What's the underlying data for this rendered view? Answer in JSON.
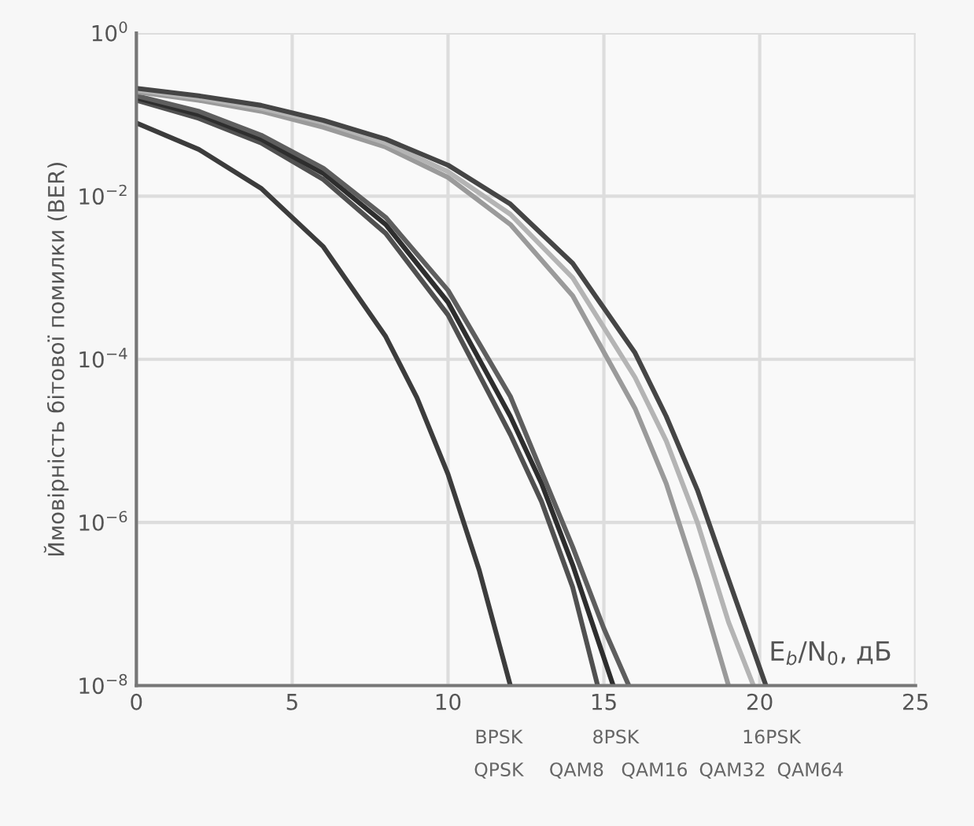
{
  "chart_data": {
    "type": "line",
    "xlabel": "E$_{b}$/N$_{0}$, дБ",
    "ylabel": "Ймовірність бітової помилки (BER)",
    "log": "y",
    "grid": true,
    "marker": "none",
    "line_style": "solid",
    "xlim": [
      0,
      25
    ],
    "xticks": [
      0,
      5,
      10,
      15,
      20,
      25
    ],
    "ylim": [
      1e-08,
      1
    ],
    "yticks": [
      {
        "value": 1,
        "label": "10$^{0}$"
      },
      {
        "value": 0.01,
        "label": "10$^{−2}$"
      },
      {
        "value": 0.0001,
        "label": "10$^{−4}$"
      },
      {
        "value": 1e-06,
        "label": "10$^{−6}$"
      },
      {
        "value": 1e-08,
        "label": "10$^{−8}$"
      }
    ],
    "series": [
      {
        "color": "#3c3c3c",
        "x": [
          0,
          2,
          4,
          6,
          8,
          9,
          10,
          11,
          12
        ],
        "values": [
          0.079,
          0.0375,
          0.0125,
          0.0024,
          0.00019,
          3.4e-05,
          3.9e-06,
          2.6e-07,
          1e-08
        ]
      },
      {
        "color": "#505050",
        "x": [
          0,
          2,
          4,
          6,
          8,
          10,
          12,
          13,
          14,
          14.8
        ],
        "values": [
          0.15,
          0.09,
          0.045,
          0.016,
          0.0035,
          0.00035,
          1.2e-05,
          1.8e-06,
          1.6e-07,
          1e-08
        ]
      },
      {
        "color": "#2e2e2e",
        "x": [
          0,
          2,
          4,
          6,
          8,
          10,
          12,
          13,
          14,
          15.3
        ],
        "values": [
          0.16,
          0.1,
          0.05,
          0.019,
          0.0045,
          0.0005,
          2e-05,
          3e-06,
          3e-07,
          1e-08
        ]
      },
      {
        "color": "#5e5e5e",
        "x": [
          0,
          2,
          4,
          6,
          8,
          10,
          12,
          14,
          15,
          15.8
        ],
        "values": [
          0.17,
          0.11,
          0.056,
          0.022,
          0.0055,
          0.0007,
          3.5e-05,
          5e-07,
          5e-08,
          1e-08
        ]
      },
      {
        "color": "#9a9a9a",
        "x": [
          0,
          2,
          4,
          6,
          8,
          10,
          12,
          14,
          16,
          17,
          18,
          19
        ],
        "values": [
          0.19,
          0.15,
          0.11,
          0.07,
          0.04,
          0.017,
          0.0045,
          0.0006,
          2.5e-05,
          3e-06,
          2e-07,
          1e-08
        ]
      },
      {
        "color": "#b4b4b4",
        "x": [
          0,
          2,
          4,
          6,
          8,
          10,
          12,
          14,
          16,
          17,
          18,
          19,
          19.8
        ],
        "values": [
          0.2,
          0.16,
          0.12,
          0.08,
          0.045,
          0.02,
          0.006,
          0.001,
          6e-05,
          1e-05,
          1e-06,
          6e-08,
          1e-08
        ]
      },
      {
        "color": "#454545",
        "x": [
          0,
          2,
          4,
          6,
          8,
          10,
          12,
          14,
          16,
          17,
          18,
          19,
          20.2
        ],
        "values": [
          0.21,
          0.17,
          0.13,
          0.085,
          0.05,
          0.024,
          0.008,
          0.0015,
          0.00012,
          2e-05,
          2.5e-06,
          2e-07,
          1e-08
        ]
      }
    ],
    "annotations": [
      "BPSK",
      "QPSK",
      "8PSK",
      "QAM8",
      "QAM16",
      "16PSK",
      "QAM32",
      "QAM64"
    ]
  }
}
